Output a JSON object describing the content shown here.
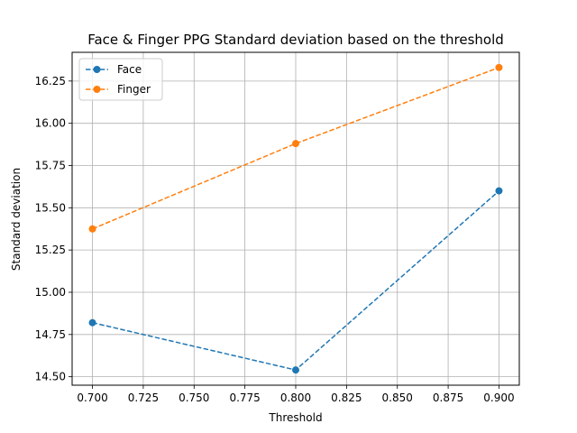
{
  "chart_data": {
    "type": "line",
    "title": "Face & Finger PPG Standard deviation based on the threshold",
    "xlabel": "Threshold",
    "ylabel": "Standard deviation",
    "x": [
      0.7,
      0.8,
      0.9
    ],
    "series": [
      {
        "name": "Face",
        "values": [
          14.82,
          14.54,
          15.6
        ],
        "color": "#1f77b4"
      },
      {
        "name": "Finger",
        "values": [
          15.375,
          15.88,
          16.33
        ],
        "color": "#ff7f0e"
      }
    ],
    "xlim": [
      0.69,
      0.91
    ],
    "ylim": [
      14.45,
      16.42
    ],
    "xticks": [
      "0.700",
      "0.725",
      "0.750",
      "0.775",
      "0.800",
      "0.825",
      "0.850",
      "0.875",
      "0.900"
    ],
    "yticks": [
      "14.50",
      "14.75",
      "15.00",
      "15.25",
      "15.50",
      "15.75",
      "16.00",
      "16.25"
    ],
    "grid": true,
    "legend_position": "top-left",
    "line_style": "dashed",
    "marker": "circle"
  }
}
